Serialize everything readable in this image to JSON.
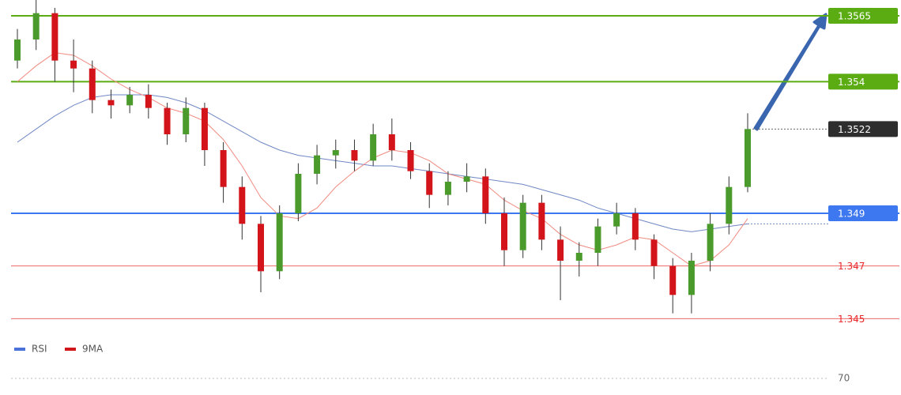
{
  "chart_data": {
    "type": "candlestick",
    "ylim": [
      1.3442,
      1.3571
    ],
    "candles": {
      "open": [
        1.3548,
        1.3556,
        1.3566,
        1.3548,
        1.3545,
        1.3533,
        1.3531,
        1.3535,
        1.353,
        1.352,
        1.353,
        1.3514,
        1.35,
        1.3486,
        1.3468,
        1.349,
        1.3505,
        1.3512,
        1.3514,
        1.351,
        1.352,
        1.3514,
        1.3506,
        1.3497,
        1.3502,
        1.3504,
        1.349,
        1.3476,
        1.3494,
        1.348,
        1.3472,
        1.3475,
        1.3485,
        1.349,
        1.348,
        1.347,
        1.3459,
        1.3472,
        1.3486,
        1.35
      ],
      "high": [
        1.356,
        1.3571,
        1.3568,
        1.3556,
        1.3548,
        1.3537,
        1.3538,
        1.3539,
        1.3532,
        1.3534,
        1.3532,
        1.3517,
        1.3504,
        1.3489,
        1.3493,
        1.3509,
        1.3516,
        1.3518,
        1.3518,
        1.3524,
        1.3526,
        1.3517,
        1.3509,
        1.3506,
        1.3509,
        1.3507,
        1.3496,
        1.3497,
        1.3497,
        1.3485,
        1.3479,
        1.3488,
        1.3494,
        1.3492,
        1.3482,
        1.3473,
        1.3475,
        1.349,
        1.3504,
        1.3528
      ],
      "low": [
        1.3545,
        1.3552,
        1.354,
        1.3536,
        1.3528,
        1.3526,
        1.3528,
        1.3526,
        1.3516,
        1.3517,
        1.3508,
        1.3494,
        1.348,
        1.346,
        1.3465,
        1.3487,
        1.3501,
        1.3507,
        1.3506,
        1.3508,
        1.351,
        1.3503,
        1.3492,
        1.3493,
        1.3498,
        1.3486,
        1.347,
        1.3473,
        1.3476,
        1.3457,
        1.3466,
        1.347,
        1.3482,
        1.3476,
        1.3465,
        1.3452,
        1.3452,
        1.3468,
        1.3482,
        1.3498
      ],
      "close": [
        1.3556,
        1.3566,
        1.3548,
        1.3545,
        1.3533,
        1.3531,
        1.3535,
        1.353,
        1.352,
        1.353,
        1.3514,
        1.35,
        1.3486,
        1.3468,
        1.349,
        1.3505,
        1.3512,
        1.3514,
        1.351,
        1.352,
        1.3514,
        1.3506,
        1.3497,
        1.3502,
        1.3504,
        1.349,
        1.3476,
        1.3494,
        1.348,
        1.3472,
        1.3475,
        1.3485,
        1.349,
        1.348,
        1.347,
        1.3459,
        1.3472,
        1.3486,
        1.35,
        1.3522
      ]
    },
    "up_color": "#4b9a2c",
    "down_color": "#d3141a",
    "series": [
      {
        "color": "#6f87c4",
        "values": [
          1.3517,
          1.3522,
          1.3527,
          1.3531,
          1.3534,
          1.3535,
          1.3535,
          1.3535,
          1.3534,
          1.3532,
          1.3529,
          1.3525,
          1.3521,
          1.3517,
          1.3514,
          1.3512,
          1.3511,
          1.351,
          1.3509,
          1.3508,
          1.3508,
          1.3507,
          1.3506,
          1.3505,
          1.3504,
          1.3503,
          1.3502,
          1.3501,
          1.3499,
          1.3497,
          1.3495,
          1.3492,
          1.349,
          1.3488,
          1.3486,
          1.3484,
          1.3483,
          1.3484,
          1.3485,
          1.3486
        ]
      },
      {
        "color": "#f08a80",
        "values": [
          1.354,
          1.3546,
          1.3551,
          1.355,
          1.3546,
          1.3541,
          1.3537,
          1.3534,
          1.353,
          1.3528,
          1.3525,
          1.3518,
          1.3508,
          1.3496,
          1.3489,
          1.3488,
          1.3492,
          1.35,
          1.3506,
          1.3511,
          1.3514,
          1.3513,
          1.351,
          1.3505,
          1.3503,
          1.3501,
          1.3495,
          1.3491,
          1.3488,
          1.3482,
          1.3478,
          1.3476,
          1.3478,
          1.3481,
          1.348,
          1.3475,
          1.347,
          1.3472,
          1.3478,
          1.3488
        ]
      }
    ],
    "levels": [
      {
        "value": 1.3565,
        "color": "#5aac12",
        "boxed": true
      },
      {
        "value": 1.354,
        "color": "#5aac12",
        "boxed": true
      },
      {
        "value": 1.349,
        "color": "#3d78f0",
        "boxed": true
      },
      {
        "value": 1.347,
        "color": "#e8292b",
        "boxed": false
      },
      {
        "value": 1.345,
        "color": "#e8292b",
        "boxed": false
      }
    ],
    "last_price": 1.3522,
    "last_color": "#2e2e2e",
    "indicator": {
      "ylim": [
        64,
        74
      ],
      "yticks": [
        70
      ],
      "legend": [
        {
          "name": "RSI",
          "color": "#4a72d8"
        },
        {
          "name": "9MA",
          "color": "#d0161a"
        }
      ]
    }
  }
}
